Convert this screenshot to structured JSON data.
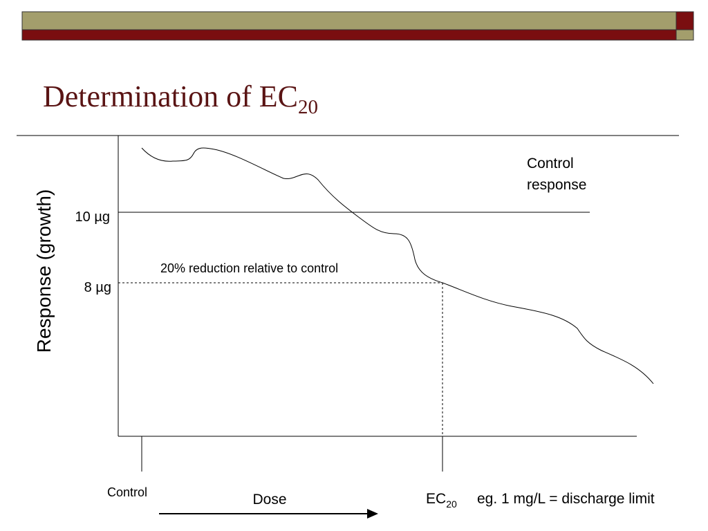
{
  "title": {
    "text": "Determination of EC",
    "subscript": "20"
  },
  "diagram": {
    "y_axis_label": "Response (growth)",
    "control_response": [
      "Control",
      "response"
    ],
    "level_high": "10 µg",
    "level_low": "8 µg",
    "reduction_note": "20% reduction relative to control",
    "x_control": "Control",
    "x_axis_label": "Dose",
    "ec_label": {
      "text": "EC",
      "subscript": "20"
    },
    "ec_note": "eg.  1 mg/L = discharge limit"
  }
}
